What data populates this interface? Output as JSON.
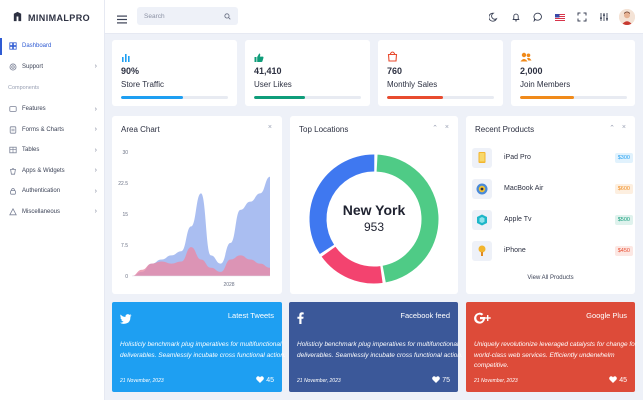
{
  "brand": {
    "name": "MINIMALPRO"
  },
  "sidebar": {
    "items": [
      {
        "label": "Dashboard",
        "icon": "dashboard-icon",
        "active": true
      },
      {
        "label": "Support",
        "icon": "support-icon",
        "chevron": true
      }
    ],
    "section": "Components",
    "components": [
      {
        "label": "Features",
        "icon": "features-icon"
      },
      {
        "label": "Forms & Charts",
        "icon": "forms-icon"
      },
      {
        "label": "Tables",
        "icon": "tables-icon"
      },
      {
        "label": "Apps & Widgets",
        "icon": "apps-icon"
      },
      {
        "label": "Authentication",
        "icon": "lock-icon"
      },
      {
        "label": "Miscellaneous",
        "icon": "misc-icon"
      }
    ]
  },
  "header": {
    "search_placeholder": "Search",
    "icons": [
      "moon-icon",
      "bell-icon",
      "chat-icon",
      "us-flag-icon",
      "fullscreen-icon",
      "sliders-icon",
      "avatar"
    ]
  },
  "stats": [
    {
      "value": "90%",
      "label": "Store Traffic",
      "progress": 0.58,
      "color": "#1e9ff2",
      "icon": "bar-chart-icon"
    },
    {
      "value": "41,410",
      "label": "User Likes",
      "progress": 0.48,
      "color": "#0f9d7a",
      "icon": "thumbs-up-icon"
    },
    {
      "value": "760",
      "label": "Monthly Sales",
      "progress": 0.52,
      "color": "#e84b2f",
      "icon": "shopping-bag-icon"
    },
    {
      "value": "2,000",
      "label": "Join Members",
      "progress": 0.5,
      "color": "#f08a1a",
      "icon": "users-icon"
    }
  ],
  "area_chart": {
    "title": "Area Chart",
    "close": "×"
  },
  "chart_data": {
    "type": "area",
    "title": "Area Chart",
    "y_ticks": [
      "0",
      "7.5",
      "15",
      "22.5",
      "30"
    ],
    "x_tick": "2028",
    "ylim": [
      0,
      30
    ],
    "series": [
      {
        "color": "#9bb3ef",
        "values": [
          0,
          1,
          3,
          4,
          5,
          6,
          12,
          20,
          5,
          3,
          8,
          16,
          18,
          20,
          24
        ]
      },
      {
        "color": "#e98aa6",
        "values": [
          0,
          1.5,
          3,
          3.5,
          3,
          3.5,
          7,
          4,
          2,
          1,
          4,
          5,
          4,
          3,
          2
        ]
      }
    ]
  },
  "top_locations": {
    "title": "Top Locations",
    "city": "New York",
    "value": "953",
    "ctrl_up": "⌃",
    "ctrl_close": "×",
    "segments": [
      {
        "color": "#4fcb86",
        "fraction": 0.47
      },
      {
        "color": "#f3436f",
        "fraction": 0.18
      },
      {
        "color": "#3f78f0",
        "fraction": 0.35
      }
    ]
  },
  "recent_products": {
    "title": "Recent Products",
    "ctrl_up": "⌃",
    "ctrl_close": "×",
    "view_all": "View All Products",
    "items": [
      {
        "name": "iPad Pro",
        "price": "$300",
        "price_color": "#1e9ff2",
        "icon": "ipad-icon"
      },
      {
        "name": "MacBook Air",
        "price": "$600",
        "price_color": "#f08a1a",
        "icon": "macbook-icon"
      },
      {
        "name": "Apple Tv",
        "price": "$500",
        "price_color": "#0f9d7a",
        "icon": "apple-tv-icon"
      },
      {
        "name": "iPhone",
        "price": "$450",
        "price_color": "#e84b2f",
        "icon": "iphone-icon"
      }
    ]
  },
  "social": [
    {
      "title": "Latest Tweets",
      "icon": "twitter-icon",
      "bg": "#1e9ff2",
      "text": "Holisticly benchmark plug imperatives for multifunctional deliverables. Seamlessly incubate cross functional action.",
      "date": "21 November, 2023",
      "likes": "45"
    },
    {
      "title": "Facebook feed",
      "icon": "facebook-icon",
      "bg": "#3b5899",
      "text": "Holisticly benchmark plug imperatives for multifunctional deliverables. Seamlessly incubate cross functional action.",
      "date": "21 November, 2023",
      "likes": "75"
    },
    {
      "title": "Google Plus",
      "icon": "google-plus-icon",
      "bg": "#dd4b39",
      "text": "Uniquely revolutionize leveraged catalysts for change for world-class web services. Efficiently underwhelm competitive.",
      "date": "21 November, 2023",
      "likes": "45"
    }
  ]
}
